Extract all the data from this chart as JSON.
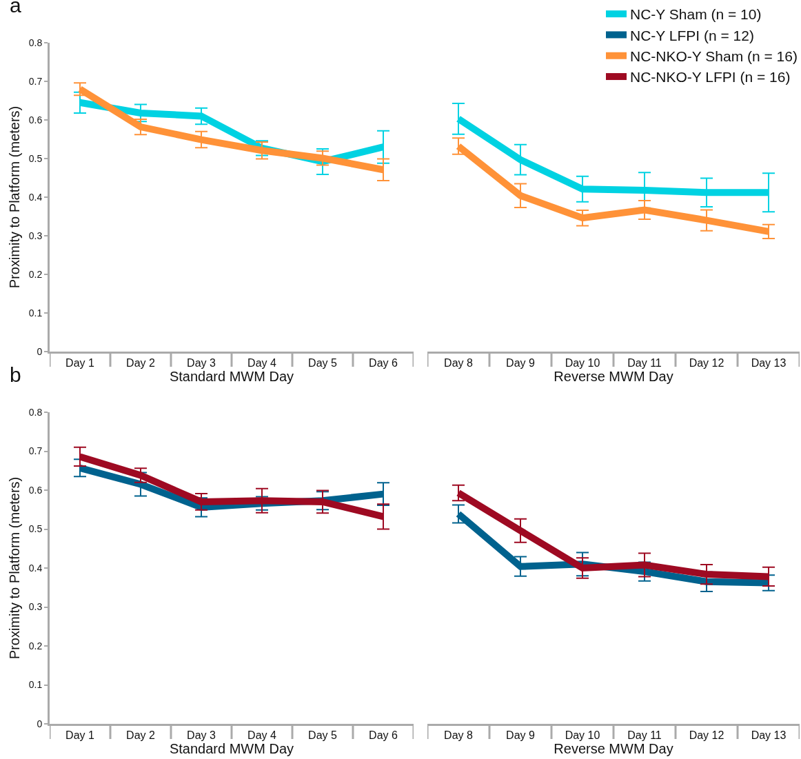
{
  "chart_data": [
    {
      "type": "line",
      "annotations": [
        "a"
      ],
      "xlabel": "Standard MWM Day",
      "ylabel": "Proximity to Platform (meters)",
      "categories": [
        "Day 1",
        "Day 2",
        "Day 3",
        "Day 4",
        "Day 5",
        "Day 6"
      ],
      "ylim": [
        0,
        0.8
      ],
      "yticks": [
        0,
        0.1,
        0.2,
        0.3,
        0.4,
        0.5,
        0.6,
        0.7,
        0.8
      ],
      "grid": false,
      "marker": "none",
      "line_style": "solid",
      "legend": "top right",
      "series": [
        {
          "name": "NC-Y Sham (n = 10)",
          "color": "#00d2e2",
          "values": [
            0.645,
            0.618,
            0.61,
            0.527,
            0.492,
            0.53
          ],
          "errors": [
            0.027,
            0.022,
            0.021,
            0.019,
            0.033,
            0.042
          ]
        },
        {
          "name": "NC-NKO-Y Sham (n = 16)",
          "color": "#ff9238",
          "values": [
            0.68,
            0.582,
            0.549,
            0.521,
            0.501,
            0.471
          ],
          "errors": [
            0.016,
            0.02,
            0.021,
            0.022,
            0.018,
            0.028
          ]
        }
      ]
    },
    {
      "type": "line",
      "xlabel": "Reverse MWM Day",
      "categories": [
        "Day 8",
        "Day 9",
        "Day 10",
        "Day 11",
        "Day 12",
        "Day 13"
      ],
      "ylim": [
        0,
        0.8
      ],
      "yticks": [
        0,
        0.1,
        0.2,
        0.3,
        0.4,
        0.5,
        0.6,
        0.7,
        0.8
      ],
      "tick_labels": "x",
      "grid": false,
      "marker": "none",
      "line_style": "solid",
      "legend": "top right",
      "series": [
        {
          "name": "NC-Y Sham (n = 10)",
          "color": "#00d2e2",
          "values": [
            0.603,
            0.497,
            0.421,
            0.418,
            0.412,
            0.412
          ],
          "errors": [
            0.04,
            0.039,
            0.033,
            0.046,
            0.037,
            0.05
          ]
        },
        {
          "name": "NC-NKO-Y Sham (n = 16)",
          "color": "#ff9238",
          "values": [
            0.532,
            0.404,
            0.346,
            0.367,
            0.34,
            0.311
          ],
          "errors": [
            0.021,
            0.031,
            0.02,
            0.024,
            0.027,
            0.018
          ]
        }
      ]
    },
    {
      "type": "line",
      "annotations": [
        "b"
      ],
      "xlabel": "Standard MWM Day",
      "ylabel": "Proximity to Platform (meters)",
      "categories": [
        "Day 1",
        "Day 2",
        "Day 3",
        "Day 4",
        "Day 5",
        "Day 6"
      ],
      "ylim": [
        0,
        0.8
      ],
      "yticks": [
        0,
        0.1,
        0.2,
        0.3,
        0.4,
        0.5,
        0.6,
        0.7,
        0.8
      ],
      "grid": false,
      "marker": "none",
      "line_style": "solid",
      "legend": "top right",
      "series": [
        {
          "name": "NC-Y LFPI (n = 12)",
          "color": "#00628e",
          "values": [
            0.657,
            0.615,
            0.556,
            0.566,
            0.573,
            0.59
          ],
          "errors": [
            0.022,
            0.03,
            0.024,
            0.017,
            0.023,
            0.029
          ]
        },
        {
          "name": "NC-NKO-Y LFPI (n = 16)",
          "color": "#9e0a22",
          "values": [
            0.686,
            0.638,
            0.57,
            0.573,
            0.57,
            0.532
          ],
          "errors": [
            0.024,
            0.018,
            0.021,
            0.031,
            0.029,
            0.032
          ]
        }
      ]
    },
    {
      "type": "line",
      "xlabel": "Reverse MWM Day",
      "categories": [
        "Day 8",
        "Day 9",
        "Day 10",
        "Day 11",
        "Day 12",
        "Day 13"
      ],
      "ylim": [
        0,
        0.8
      ],
      "yticks": [
        0,
        0.1,
        0.2,
        0.3,
        0.4,
        0.5,
        0.6,
        0.7,
        0.8
      ],
      "tick_labels": "x",
      "grid": false,
      "marker": "none",
      "line_style": "solid",
      "series": [
        {
          "name": "NC-Y LFPI (n = 12)",
          "color": "#00628e",
          "values": [
            0.539,
            0.404,
            0.41,
            0.391,
            0.365,
            0.362
          ],
          "errors": [
            0.023,
            0.025,
            0.03,
            0.024,
            0.025,
            0.02
          ]
        },
        {
          "name": "NC-NKO-Y LFPI (n = 16)",
          "color": "#9e0a22",
          "values": [
            0.593,
            0.496,
            0.4,
            0.408,
            0.384,
            0.378
          ],
          "errors": [
            0.02,
            0.03,
            0.026,
            0.03,
            0.025,
            0.024
          ]
        }
      ]
    }
  ]
}
